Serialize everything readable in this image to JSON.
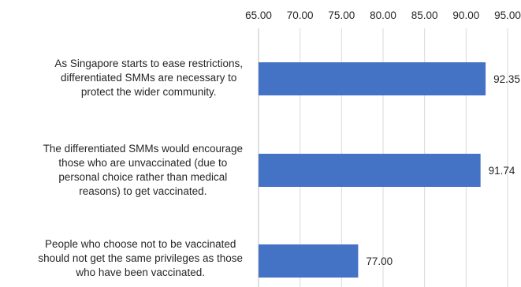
{
  "chart_data": {
    "type": "bar",
    "orientation": "horizontal",
    "title": "",
    "xlabel": "",
    "ylabel": "",
    "categories": [
      "As Singapore starts to ease restrictions,\ndifferentiated SMMs are necessary to\nprotect the wider community.",
      "The differentiated SMMs would encourage\nthose who are unvaccinated (due to\npersonal choice rather than medical\nreasons) to get vaccinated.",
      "People who choose not to be vaccinated\nshould not get the same privileges as those\nwho have been vaccinated."
    ],
    "values": [
      92.35,
      91.74,
      77.0
    ],
    "data_labels": [
      "92.35",
      "91.74",
      "77.00"
    ],
    "x_ticks": [
      "65.00",
      "70.00",
      "75.00",
      "80.00",
      "85.00",
      "90.00",
      "95.00"
    ],
    "xlim": [
      65,
      95
    ],
    "axis_position": "top",
    "grid": "vertical",
    "bar_color": "#4472C4",
    "grid_color": "#d9d9d9"
  }
}
